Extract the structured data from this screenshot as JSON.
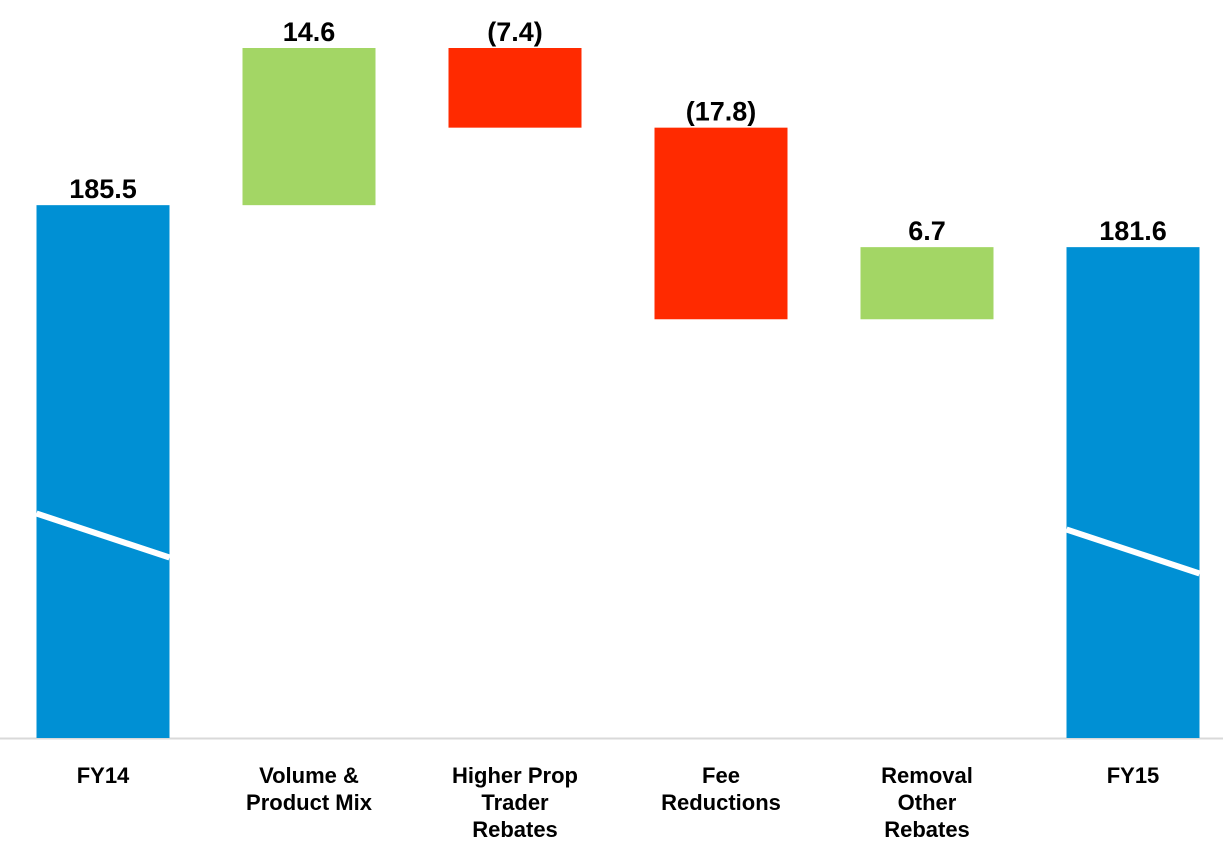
{
  "chart_data": {
    "type": "waterfall",
    "categories": [
      "FY14",
      "Volume & Product Mix",
      "Higher Prop Trader Rebates",
      "Fee Reductions",
      "Removal Other Rebates",
      "FY15"
    ],
    "values": [
      185.5,
      14.6,
      -7.4,
      -17.8,
      6.7,
      181.6
    ],
    "value_labels": [
      "185.5",
      "14.6",
      "(7.4)",
      "(17.8)",
      "6.7",
      "181.6"
    ],
    "measure": [
      "absolute",
      "relative",
      "relative",
      "relative",
      "relative",
      "absolute"
    ],
    "colors": {
      "absolute": "#0090d4",
      "increase": "#a3d665",
      "decrease": "#ff2a00"
    },
    "ylim": [
      136,
      200.1
    ],
    "axis_break": true
  }
}
